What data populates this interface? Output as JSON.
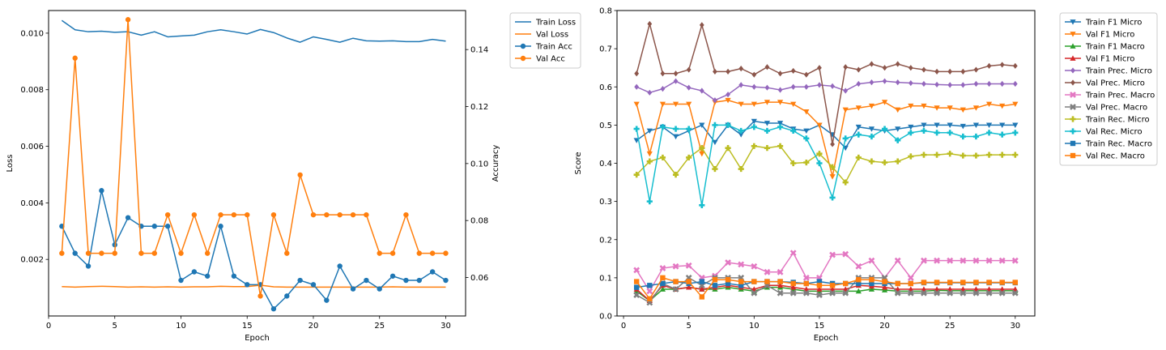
{
  "chart_data": [
    {
      "type": "line",
      "xlabel": "Epoch",
      "ylabel": "Loss",
      "ylabel_right": "Accuracy",
      "x": [
        1,
        2,
        3,
        4,
        5,
        6,
        7,
        8,
        9,
        10,
        11,
        12,
        13,
        14,
        15,
        16,
        17,
        18,
        19,
        20,
        21,
        22,
        23,
        24,
        25,
        26,
        27,
        28,
        29,
        30
      ],
      "xlim": [
        0,
        31.5
      ],
      "xticks": [
        0,
        5,
        10,
        15,
        20,
        25,
        30
      ],
      "ylim": [
        0,
        0.0108
      ],
      "yticks": [
        0.002,
        0.004,
        0.006,
        0.008,
        0.01
      ],
      "ytick_labels": [
        "0.002",
        "0.004",
        "0.006",
        "0.008",
        "0.010"
      ],
      "y2lim": [
        0.0465,
        0.1537
      ],
      "y2ticks": [
        0.06,
        0.08,
        0.1,
        0.12,
        0.14
      ],
      "y2tick_labels": [
        "0.06",
        "0.08",
        "0.10",
        "0.12",
        "0.14"
      ],
      "legend_position": "outside-right",
      "series": [
        {
          "name": "Train Loss",
          "axis": "left",
          "color": "#1f77b4",
          "marker": "none",
          "values": [
            0.01045,
            0.01012,
            0.01005,
            0.01007,
            0.01003,
            0.01005,
            0.00993,
            0.01005,
            0.00987,
            0.0099,
            0.00993,
            0.01005,
            0.01012,
            0.01005,
            0.00997,
            0.01013,
            0.01002,
            0.00983,
            0.00968,
            0.00987,
            0.00978,
            0.00968,
            0.00982,
            0.00973,
            0.00972,
            0.00973,
            0.0097,
            0.0097,
            0.00978,
            0.00972
          ]
        },
        {
          "name": "Val Loss",
          "axis": "left",
          "color": "#ff7f0e",
          "marker": "none",
          "values": [
            0.00104,
            0.00102,
            0.00104,
            0.00105,
            0.00104,
            0.00102,
            0.00103,
            0.00102,
            0.00103,
            0.00102,
            0.00103,
            0.00103,
            0.00105,
            0.00104,
            0.00104,
            0.00109,
            0.00103,
            0.00102,
            0.00102,
            0.00102,
            0.00102,
            0.00102,
            0.00102,
            0.00102,
            0.00102,
            0.00103,
            0.00102,
            0.00102,
            0.00102,
            0.00102
          ]
        },
        {
          "name": "Train Acc",
          "axis": "right",
          "color": "#1f77b4",
          "marker": "circle",
          "values": [
            0.078,
            0.0685,
            0.064,
            0.0905,
            0.0715,
            0.081,
            0.078,
            0.078,
            0.078,
            0.059,
            0.062,
            0.0605,
            0.078,
            0.0605,
            0.0575,
            0.0575,
            0.049,
            0.0535,
            0.059,
            0.0575,
            0.052,
            0.064,
            0.056,
            0.059,
            0.056,
            0.0605,
            0.059,
            0.059,
            0.062,
            0.059
          ]
        },
        {
          "name": "Val Acc",
          "axis": "right",
          "color": "#ff7f0e",
          "marker": "circle",
          "values": [
            0.0685,
            0.137,
            0.0685,
            0.0685,
            0.0685,
            0.1505,
            0.0685,
            0.0685,
            0.082,
            0.0685,
            0.082,
            0.0685,
            0.082,
            0.082,
            0.082,
            0.0535,
            0.082,
            0.0685,
            0.096,
            0.082,
            0.082,
            0.082,
            0.082,
            0.082,
            0.0685,
            0.0685,
            0.082,
            0.0685,
            0.0685,
            0.0685
          ]
        }
      ]
    },
    {
      "type": "line",
      "xlabel": "Epoch",
      "ylabel": "Score",
      "x": [
        1,
        2,
        3,
        4,
        5,
        6,
        7,
        8,
        9,
        10,
        11,
        12,
        13,
        14,
        15,
        16,
        17,
        18,
        19,
        20,
        21,
        22,
        23,
        24,
        25,
        26,
        27,
        28,
        29,
        30
      ],
      "xlim": [
        -0.5,
        31.5
      ],
      "xticks": [
        0,
        5,
        10,
        15,
        20,
        25,
        30
      ],
      "ylim": [
        0,
        0.8
      ],
      "yticks": [
        0.0,
        0.1,
        0.2,
        0.3,
        0.4,
        0.5,
        0.6,
        0.7,
        0.8
      ],
      "ytick_labels": [
        "0.0",
        "0.1",
        "0.2",
        "0.3",
        "0.4",
        "0.5",
        "0.6",
        "0.7",
        "0.8"
      ],
      "legend_position": "outside-right",
      "series": [
        {
          "name": "Train F1 Micro",
          "color": "#1f77b4",
          "marker": "triangle-down",
          "values": [
            0.46,
            0.485,
            0.495,
            0.47,
            0.485,
            0.5,
            0.455,
            0.5,
            0.475,
            0.51,
            0.505,
            0.505,
            0.49,
            0.485,
            0.5,
            0.475,
            0.44,
            0.495,
            0.49,
            0.485,
            0.49,
            0.495,
            0.5,
            0.5,
            0.5,
            0.497,
            0.5,
            0.5,
            0.5,
            0.5
          ]
        },
        {
          "name": "Val F1 Micro",
          "color": "#ff7f0e",
          "marker": "triangle-down",
          "values": [
            0.555,
            0.425,
            0.555,
            0.555,
            0.555,
            0.425,
            0.56,
            0.565,
            0.555,
            0.555,
            0.56,
            0.56,
            0.555,
            0.535,
            0.5,
            0.365,
            0.54,
            0.545,
            0.55,
            0.56,
            0.54,
            0.55,
            0.55,
            0.545,
            0.545,
            0.54,
            0.545,
            0.555,
            0.55,
            0.555
          ]
        },
        {
          "name": "Train F1 Macro",
          "color": "#2ca02c",
          "marker": "triangle-up",
          "values": [
            0.065,
            0.04,
            0.07,
            0.07,
            0.075,
            0.07,
            0.07,
            0.075,
            0.07,
            0.065,
            0.075,
            0.075,
            0.07,
            0.065,
            0.065,
            0.065,
            0.065,
            0.065,
            0.07,
            0.068,
            0.065,
            0.065,
            0.065,
            0.067,
            0.066,
            0.066,
            0.066,
            0.066,
            0.066,
            0.066
          ]
        },
        {
          "name": "Val F1 Micro",
          "color": "#d62728",
          "marker": "triangle-up",
          "values": [
            0.07,
            0.04,
            0.08,
            0.07,
            0.075,
            0.07,
            0.075,
            0.08,
            0.075,
            0.07,
            0.08,
            0.08,
            0.075,
            0.07,
            0.07,
            0.07,
            0.07,
            0.08,
            0.078,
            0.075,
            0.07,
            0.07,
            0.07,
            0.07,
            0.07,
            0.07,
            0.07,
            0.07,
            0.07,
            0.07
          ]
        },
        {
          "name": "Train Prec. Micro",
          "color": "#9467bd",
          "marker": "diamond",
          "values": [
            0.6,
            0.585,
            0.595,
            0.615,
            0.598,
            0.59,
            0.565,
            0.58,
            0.605,
            0.6,
            0.598,
            0.592,
            0.6,
            0.6,
            0.605,
            0.602,
            0.59,
            0.608,
            0.612,
            0.615,
            0.612,
            0.61,
            0.608,
            0.606,
            0.605,
            0.605,
            0.608,
            0.608,
            0.608,
            0.608
          ]
        },
        {
          "name": "Val Prec. Micro",
          "color": "#8c564b",
          "marker": "diamond",
          "values": [
            0.635,
            0.765,
            0.635,
            0.635,
            0.645,
            0.762,
            0.64,
            0.64,
            0.648,
            0.632,
            0.652,
            0.635,
            0.642,
            0.632,
            0.65,
            0.45,
            0.652,
            0.645,
            0.66,
            0.65,
            0.66,
            0.65,
            0.645,
            0.64,
            0.64,
            0.64,
            0.645,
            0.655,
            0.658,
            0.655
          ]
        },
        {
          "name": "Train Prec. Macro",
          "color": "#e377c2",
          "marker": "x",
          "values": [
            0.12,
            0.065,
            0.125,
            0.13,
            0.132,
            0.1,
            0.105,
            0.14,
            0.135,
            0.13,
            0.115,
            0.115,
            0.165,
            0.1,
            0.1,
            0.16,
            0.162,
            0.13,
            0.145,
            0.1,
            0.145,
            0.1,
            0.145,
            0.145,
            0.145,
            0.145,
            0.145,
            0.145,
            0.145,
            0.145
          ]
        },
        {
          "name": "Val Prec. Macro",
          "color": "#7f7f7f",
          "marker": "x",
          "values": [
            0.055,
            0.035,
            0.085,
            0.07,
            0.1,
            0.08,
            0.1,
            0.1,
            0.1,
            0.06,
            0.08,
            0.06,
            0.06,
            0.06,
            0.055,
            0.06,
            0.06,
            0.1,
            0.1,
            0.1,
            0.06,
            0.06,
            0.06,
            0.06,
            0.06,
            0.06,
            0.06,
            0.06,
            0.06,
            0.06
          ]
        },
        {
          "name": "Train Rec. Micro",
          "color": "#bcbd22",
          "marker": "plus",
          "values": [
            0.37,
            0.405,
            0.415,
            0.37,
            0.415,
            0.44,
            0.385,
            0.44,
            0.385,
            0.445,
            0.44,
            0.445,
            0.4,
            0.402,
            0.425,
            0.39,
            0.35,
            0.415,
            0.405,
            0.402,
            0.405,
            0.418,
            0.422,
            0.422,
            0.425,
            0.42,
            0.42,
            0.422,
            0.422,
            0.422
          ]
        },
        {
          "name": "Val Rec. Micro",
          "color": "#17becf",
          "marker": "plus",
          "values": [
            0.49,
            0.3,
            0.495,
            0.49,
            0.49,
            0.29,
            0.5,
            0.5,
            0.485,
            0.495,
            0.485,
            0.495,
            0.485,
            0.465,
            0.4,
            0.31,
            0.465,
            0.475,
            0.47,
            0.49,
            0.46,
            0.48,
            0.485,
            0.48,
            0.48,
            0.47,
            0.47,
            0.48,
            0.475,
            0.48
          ]
        },
        {
          "name": "Train Rec. Macro",
          "color": "#1f77b4",
          "marker": "square",
          "values": [
            0.075,
            0.08,
            0.085,
            0.09,
            0.085,
            0.09,
            0.08,
            0.085,
            0.08,
            0.09,
            0.09,
            0.09,
            0.088,
            0.085,
            0.09,
            0.085,
            0.085,
            0.085,
            0.085,
            0.085,
            0.085,
            0.085,
            0.087,
            0.087,
            0.087,
            0.087,
            0.087,
            0.087,
            0.087,
            0.087
          ]
        },
        {
          "name": "Val Rec. Macro",
          "color": "#ff7f0e",
          "marker": "square",
          "values": [
            0.09,
            0.045,
            0.1,
            0.09,
            0.09,
            0.05,
            0.095,
            0.095,
            0.09,
            0.09,
            0.09,
            0.09,
            0.085,
            0.085,
            0.08,
            0.08,
            0.085,
            0.095,
            0.095,
            0.09,
            0.085,
            0.085,
            0.088,
            0.088,
            0.088,
            0.088,
            0.088,
            0.088,
            0.088,
            0.088
          ]
        }
      ]
    }
  ]
}
